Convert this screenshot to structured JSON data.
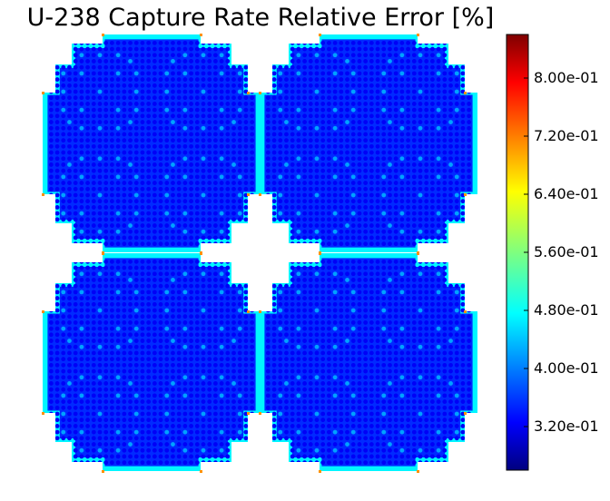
{
  "chart_data": {
    "type": "heatmap",
    "title": "U-238 Capture Rate Relative Error [%]",
    "colormap": "jet",
    "grid": false,
    "colorbar": {
      "placement": "right",
      "range": [
        0.26,
        0.86
      ],
      "ticks": [
        {
          "value": 0.32,
          "label": "3.20e-01"
        },
        {
          "value": 0.4,
          "label": "4.00e-01"
        },
        {
          "value": 0.48,
          "label": "4.80e-01"
        },
        {
          "value": 0.56,
          "label": "5.60e-01"
        },
        {
          "value": 0.64,
          "label": "6.40e-01"
        },
        {
          "value": 0.72,
          "label": "7.20e-01"
        },
        {
          "value": 0.8,
          "label": "8.00e-01"
        }
      ]
    },
    "assemblies": [
      {
        "name": "top-left"
      },
      {
        "name": "top-right"
      },
      {
        "name": "bottom-left"
      },
      {
        "name": "bottom-right"
      }
    ],
    "value_levels": {
      "interior_pin": 0.33,
      "coolant": 0.36,
      "guide_tube": 0.43,
      "edge_band": 0.48,
      "corner": 0.7
    }
  }
}
